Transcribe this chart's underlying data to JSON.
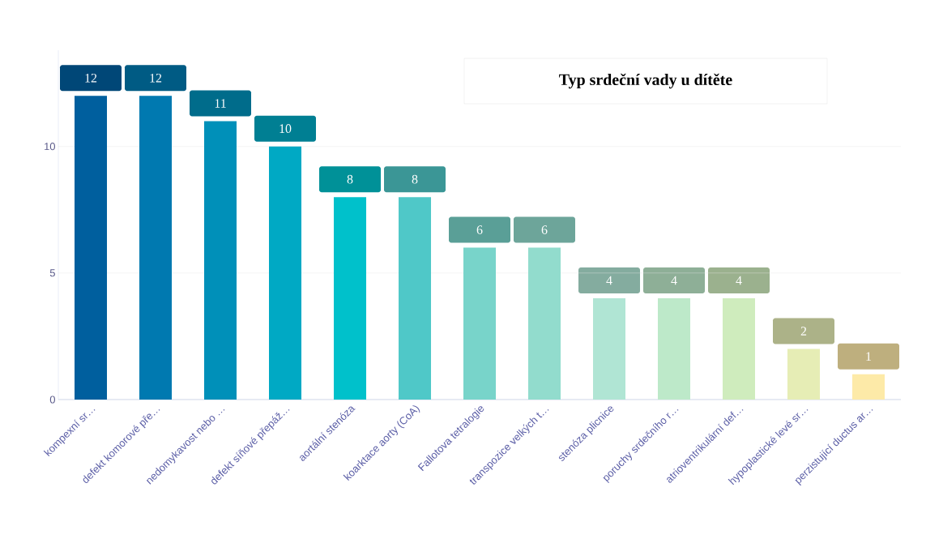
{
  "chart_data": {
    "type": "bar",
    "title": "Typ srdeční vady u dítěte",
    "categories": [
      "kompexní sr…",
      "defekt komorové pře…",
      "nedomykavost nebo …",
      "defekt síňové přepáž…",
      "aortální stenóza",
      "koarktace aorty (CoA)",
      "Fallotova tetralogie",
      "transpozice velkých t…",
      "stenóza plicnice",
      "poruchy srdečního r…",
      "atrioventrikulární def…",
      "hypoplastické levé sr…",
      "perzistující ductus ar…"
    ],
    "values": [
      12,
      12,
      11,
      10,
      8,
      8,
      6,
      6,
      4,
      4,
      4,
      2,
      1
    ],
    "colors": [
      "#005f9e",
      "#0079b0",
      "#0090b9",
      "#00a9c4",
      "#00c1cb",
      "#4fc8c8",
      "#78d4ca",
      "#92dccd",
      "#b0e5d4",
      "#bde9c9",
      "#cfecbd",
      "#e6edb5",
      "#fdeaa8"
    ],
    "ylim": [
      0,
      13.8
    ],
    "yticks": [
      0,
      5,
      10
    ],
    "grid": "y",
    "data_labels": true
  }
}
